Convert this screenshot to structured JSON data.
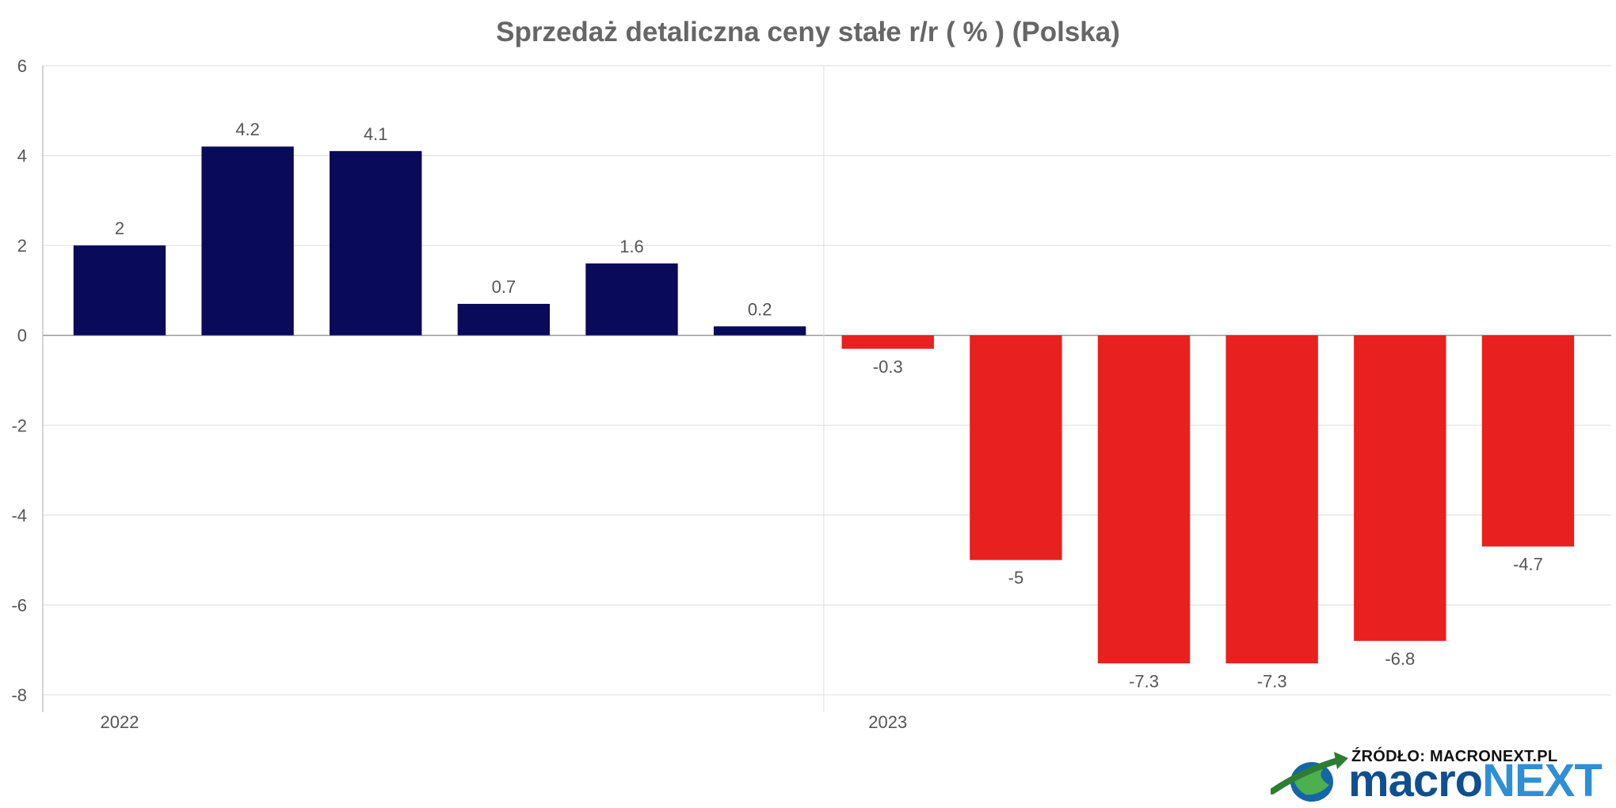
{
  "chart_data": {
    "type": "bar",
    "title": "Sprzedaż detaliczna ceny stałe r/r ( % ) (Polska)",
    "xlabel": "",
    "ylabel": "",
    "ylim": [
      -8,
      6
    ],
    "yticks": [
      6,
      4,
      2,
      0,
      -2,
      -4,
      -6,
      -8
    ],
    "year_labels": [
      "2022",
      "2023"
    ],
    "grid": true,
    "legend": "none",
    "values": [
      2,
      4.2,
      4.1,
      0.7,
      1.6,
      0.2,
      -0.3,
      -5,
      -7.3,
      -7.3,
      -6.8,
      -4.7
    ],
    "value_labels": [
      "2",
      "4.2",
      "4.1",
      "0.7",
      "1.6",
      "0.2",
      "-0.3",
      "-5",
      "-7.3",
      "-7.3",
      "-6.8",
      "-4.7"
    ],
    "colors": {
      "positive": "#0a0a5a",
      "negative": "#e82020",
      "grid": "#dddddd",
      "axis": "#aaaaaa"
    }
  },
  "source": {
    "label": "ŹRÓDŁO: MACRONEXT.PL",
    "brand_part1": "macro",
    "brand_part2": "NEXT",
    "logo_icon": "globe-arrow-icon"
  }
}
